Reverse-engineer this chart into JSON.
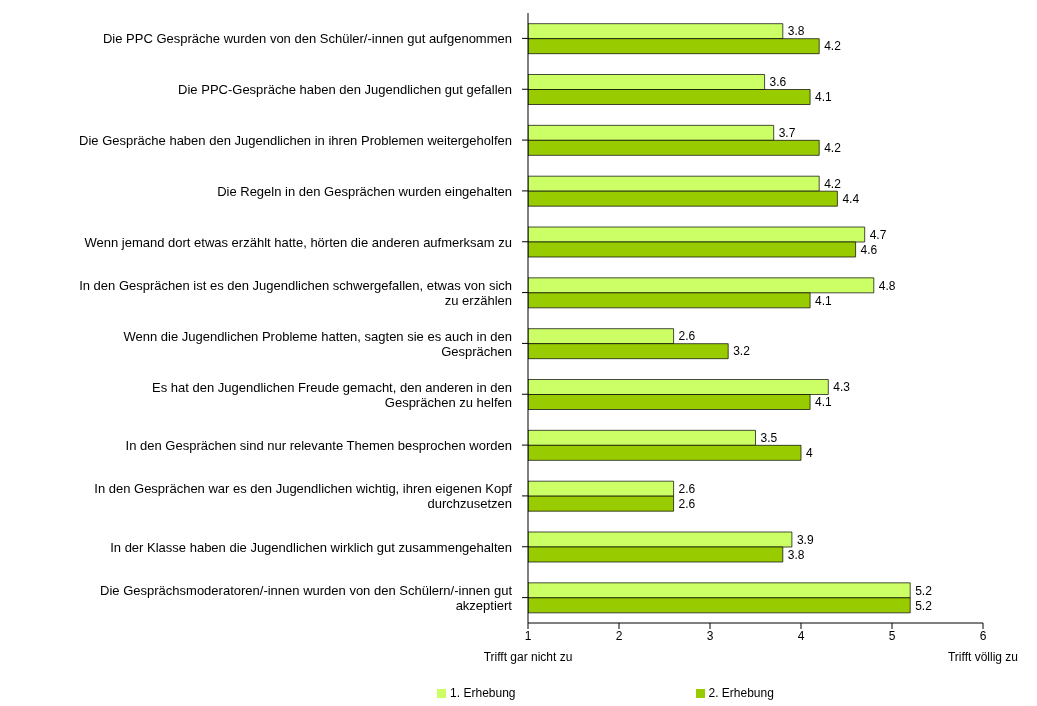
{
  "chart_data": {
    "type": "bar",
    "orientation": "horizontal",
    "categories": [
      "Die PPC Gespräche wurden von den Schüler/-innen gut aufgenommen",
      "Die PPC-Gespräche haben den Jugendlichen gut gefallen",
      "Die Gespräche haben den Jugendlichen in ihren Problemen weitergeholfen",
      "Die Regeln in den Gesprächen wurden eingehalten",
      "Wenn jemand dort etwas erzählt hatte, hörten die anderen aufmerksam zu",
      "In den Gesprächen ist es den Jugendlichen schwergefallen, etwas von sich zu erzählen",
      "Wenn die Jugendlichen Probleme hatten, sagten sie es auch in den Gesprächen",
      "Es hat den Jugendlichen Freude gemacht, den anderen in den Gesprächen zu helfen",
      "In den Gesprächen sind nur relevante Themen besprochen worden",
      "In den Gesprächen war es den Jugendlichen wichtig, ihren eigenen Kopf durchzusetzen",
      "In der Klasse haben die Jugendlichen wirklich gut zusammengehalten",
      "Die Gesprächsmoderatoren/-innen wurden von den Schülern/-innen gut akzeptiert"
    ],
    "series": [
      {
        "name": "1. Erhebung",
        "color": "#ccff66",
        "values": [
          3.8,
          3.6,
          3.7,
          4.2,
          4.7,
          4.8,
          2.6,
          4.3,
          3.5,
          2.6,
          3.9,
          5.2
        ]
      },
      {
        "name": "2. Erhebung",
        "color": "#99cc00",
        "values": [
          4.2,
          4.1,
          4.2,
          4.4,
          4.6,
          4.1,
          3.2,
          4.1,
          4,
          2.6,
          3.8,
          5.2
        ]
      }
    ],
    "xlim": [
      1,
      6
    ],
    "xticks": [
      1,
      2,
      3,
      4,
      5,
      6
    ],
    "data_labels": true,
    "legend": "bottom",
    "annotations": [
      "Trifft gar nicht zu",
      "Trifft völlig zu"
    ]
  }
}
